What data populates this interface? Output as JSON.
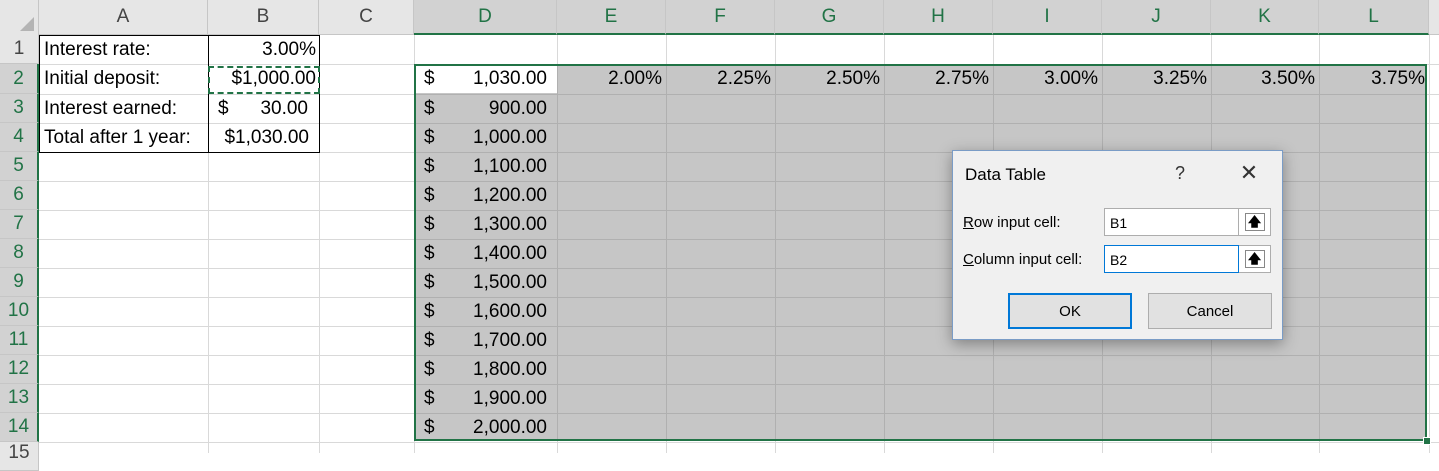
{
  "columns": [
    "A",
    "B",
    "C",
    "D",
    "E",
    "F",
    "G",
    "H",
    "I",
    "J",
    "K",
    "L"
  ],
  "rows": [
    "1",
    "2",
    "3",
    "4",
    "5",
    "6",
    "7",
    "8",
    "9",
    "10",
    "11",
    "12",
    "13",
    "14",
    "15"
  ],
  "labels": {
    "a1": "Interest rate:",
    "a2": "Initial deposit:",
    "a3": "Interest earned:",
    "a4": "Total after 1 year:"
  },
  "values": {
    "b1": "3.00%",
    "b2": "$1,000.00",
    "b3_symbol": "$",
    "b3_amount": "30.00",
    "b4": "$1,030.00"
  },
  "table": {
    "currency_symbol": "$",
    "corner_value": "1,030.00",
    "rates": [
      "2.00%",
      "2.25%",
      "2.50%",
      "2.75%",
      "3.00%",
      "3.25%",
      "3.50%",
      "3.75%"
    ],
    "deposits": [
      "900.00",
      "1,000.00",
      "1,100.00",
      "1,200.00",
      "1,300.00",
      "1,400.00",
      "1,500.00",
      "1,600.00",
      "1,700.00",
      "1,800.00",
      "1,900.00",
      "2,000.00"
    ]
  },
  "dialog": {
    "title": "Data Table",
    "help": "?",
    "close": "✕",
    "row_label_key": "R",
    "row_label_rest": "ow input cell:",
    "row_input_value": "B1",
    "col_label_key": "C",
    "col_label_rest": "olumn input cell:",
    "col_input_value": "B2",
    "ref_icon": "🡅",
    "ok_label": "OK",
    "cancel_label": "Cancel"
  },
  "colors": {
    "accent": "#217346",
    "selection_fill": "#c6c6c6",
    "dialog_focus": "#0078d7"
  }
}
